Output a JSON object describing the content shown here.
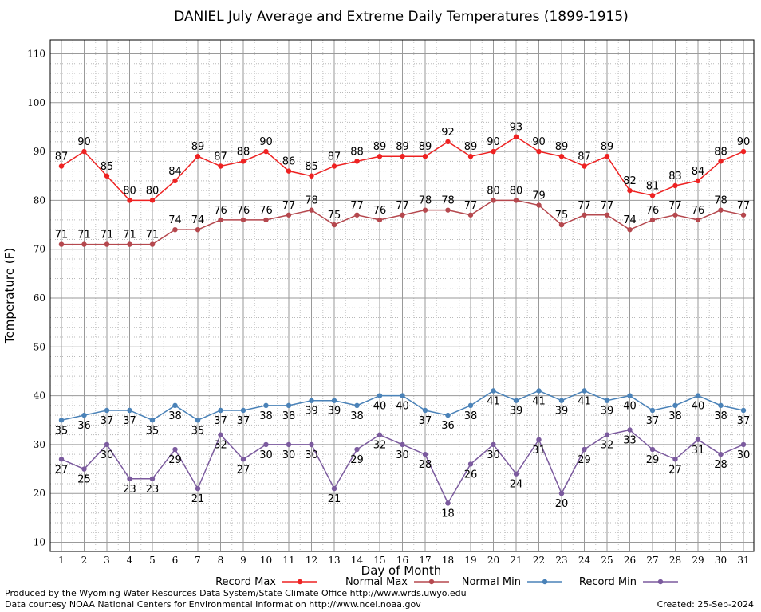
{
  "chart_data": {
    "type": "line",
    "title": "DANIEL July Average and Extreme Daily Temperatures (1899-1915)",
    "xlabel": "Day of Month",
    "ylabel": "Temperature (F)",
    "xlim": [
      1,
      31
    ],
    "ylim": [
      8.3,
      112
    ],
    "yticks": [
      10,
      20,
      30,
      40,
      50,
      60,
      70,
      80,
      90,
      100,
      110
    ],
    "grid": true,
    "legend_position": "bottom",
    "x": [
      1,
      2,
      3,
      4,
      5,
      6,
      7,
      8,
      9,
      10,
      11,
      12,
      13,
      14,
      15,
      16,
      17,
      18,
      19,
      20,
      21,
      22,
      23,
      24,
      25,
      26,
      27,
      28,
      29,
      30,
      31
    ],
    "series": [
      {
        "name": "Record Max",
        "color": "#ee2222",
        "label_position": "above",
        "values": [
          87,
          90,
          85,
          80,
          80,
          84,
          89,
          87,
          88,
          90,
          86,
          85,
          87,
          88,
          89,
          89,
          89,
          92,
          89,
          90,
          93,
          90,
          89,
          87,
          89,
          82,
          81,
          83,
          84,
          88,
          90
        ]
      },
      {
        "name": "Normal Max",
        "color": "#b5484e",
        "label_position": "above",
        "values": [
          71,
          71,
          71,
          71,
          71,
          74,
          74,
          76,
          76,
          76,
          77,
          78,
          75,
          77,
          76,
          77,
          78,
          78,
          77,
          80,
          80,
          79,
          75,
          77,
          77,
          74,
          76,
          77,
          76,
          78,
          77
        ]
      },
      {
        "name": "Normal Min",
        "color": "#4a82b8",
        "label_position": "below",
        "values": [
          35,
          36,
          37,
          37,
          35,
          38,
          35,
          37,
          37,
          38,
          38,
          39,
          39,
          38,
          40,
          40,
          37,
          36,
          38,
          41,
          39,
          41,
          39,
          41,
          39,
          40,
          37,
          38,
          40,
          38,
          37
        ]
      },
      {
        "name": "Record Min",
        "color": "#7b5a9e",
        "label_position": "below",
        "values": [
          27,
          25,
          30,
          23,
          23,
          29,
          21,
          32,
          27,
          30,
          30,
          30,
          21,
          29,
          32,
          30,
          28,
          18,
          26,
          30,
          24,
          31,
          20,
          29,
          32,
          33,
          29,
          27,
          31,
          28,
          30
        ]
      }
    ]
  },
  "footer": {
    "credit_line": "Produced by the Wyoming Water Resources Data System/State Climate Office http://www.wrds.uwyo.edu",
    "data_line": "Data courtesy NOAA National Centers for Environmental Information http://www.ncei.noaa.gov",
    "created": "Created:  25-Sep-2024"
  }
}
